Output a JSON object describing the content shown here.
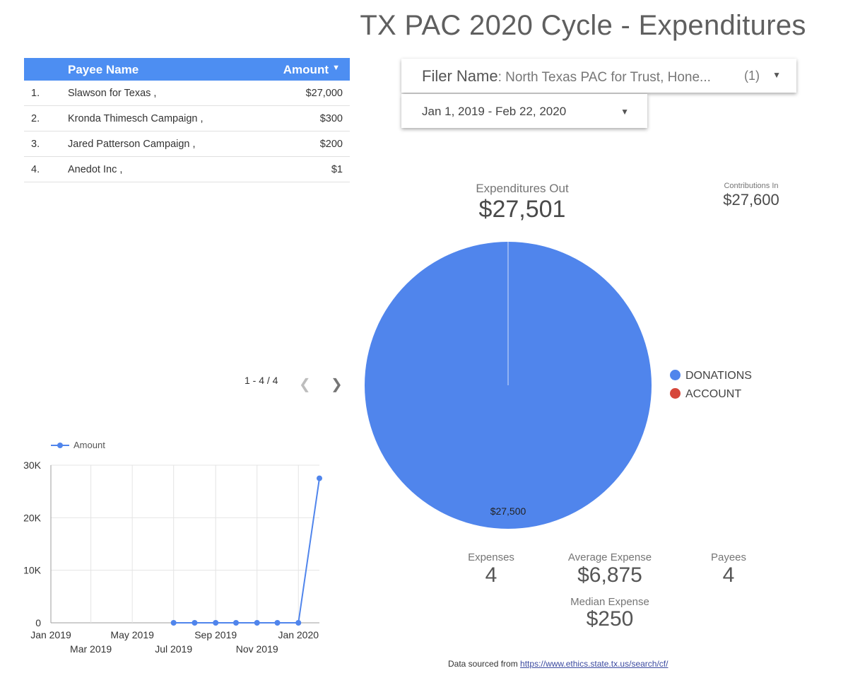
{
  "title": "TX PAC 2020 Cycle - Expenditures",
  "table": {
    "columns": {
      "name": "Payee Name",
      "amount": "Amount"
    },
    "rows": [
      {
        "idx": "1.",
        "name": "Slawson for Texas ,",
        "amount": "$27,000"
      },
      {
        "idx": "2.",
        "name": "Kronda Thimesch Campaign ,",
        "amount": "$300"
      },
      {
        "idx": "3.",
        "name": "Jared Patterson Campaign ,",
        "amount": "$200"
      },
      {
        "idx": "4.",
        "name": "Anedot Inc ,",
        "amount": "$1"
      }
    ],
    "pagination": "1 - 4 / 4"
  },
  "filters": {
    "filer_label": "Filer Name",
    "filer_value": ": North Texas PAC for Trust, Hone...",
    "filer_count": "(1)",
    "date_range": "Jan 1, 2019 - Feb 22, 2020"
  },
  "scorecards": {
    "expenditures_out": {
      "label": "Expenditures Out",
      "value": "$27,501"
    },
    "contributions_in": {
      "label": "Contributions In",
      "value": "$27,600"
    },
    "expenses": {
      "label": "Expenses",
      "value": "4"
    },
    "average_expense": {
      "label": "Average Expense",
      "value": "$6,875"
    },
    "payees": {
      "label": "Payees",
      "value": "4"
    },
    "median_expense": {
      "label": "Median Expense",
      "value": "$250"
    }
  },
  "footer": {
    "text": "Data sourced from ",
    "link": "https://www.ethics.state.tx.us/search/cf/"
  },
  "colors": {
    "primary": "#4d8ef2",
    "donations": "#5085ec",
    "account": "#d6473b"
  },
  "chart_data": [
    {
      "type": "pie",
      "slices": [
        {
          "name": "DONATIONS",
          "value": 27500,
          "color": "#5085ec"
        },
        {
          "name": "ACCOUNT",
          "value": 1,
          "color": "#d6473b"
        }
      ],
      "data_labels": [
        "$27,500"
      ],
      "legend": "right"
    },
    {
      "type": "line",
      "series": [
        {
          "name": "Amount",
          "x": [
            "2019-07-01",
            "2019-08-01",
            "2019-09-01",
            "2019-10-01",
            "2019-11-01",
            "2019-12-01",
            "2020-01-01",
            "2020-02-01"
          ],
          "values": [
            0,
            0,
            0,
            0,
            0,
            0,
            0,
            27501
          ]
        }
      ],
      "x_ticks": [
        "Jan 2019",
        "Mar 2019",
        "May 2019",
        "Jul 2019",
        "Sep 2019",
        "Nov 2019",
        "Jan 2020"
      ],
      "y_ticks": [
        "0",
        "10K",
        "20K",
        "30K"
      ],
      "ylim": [
        0,
        30000
      ],
      "xlim": [
        "2019-01-01",
        "2020-02-01"
      ],
      "legend": "top-left",
      "grid": true,
      "color": "#5085ec"
    }
  ]
}
